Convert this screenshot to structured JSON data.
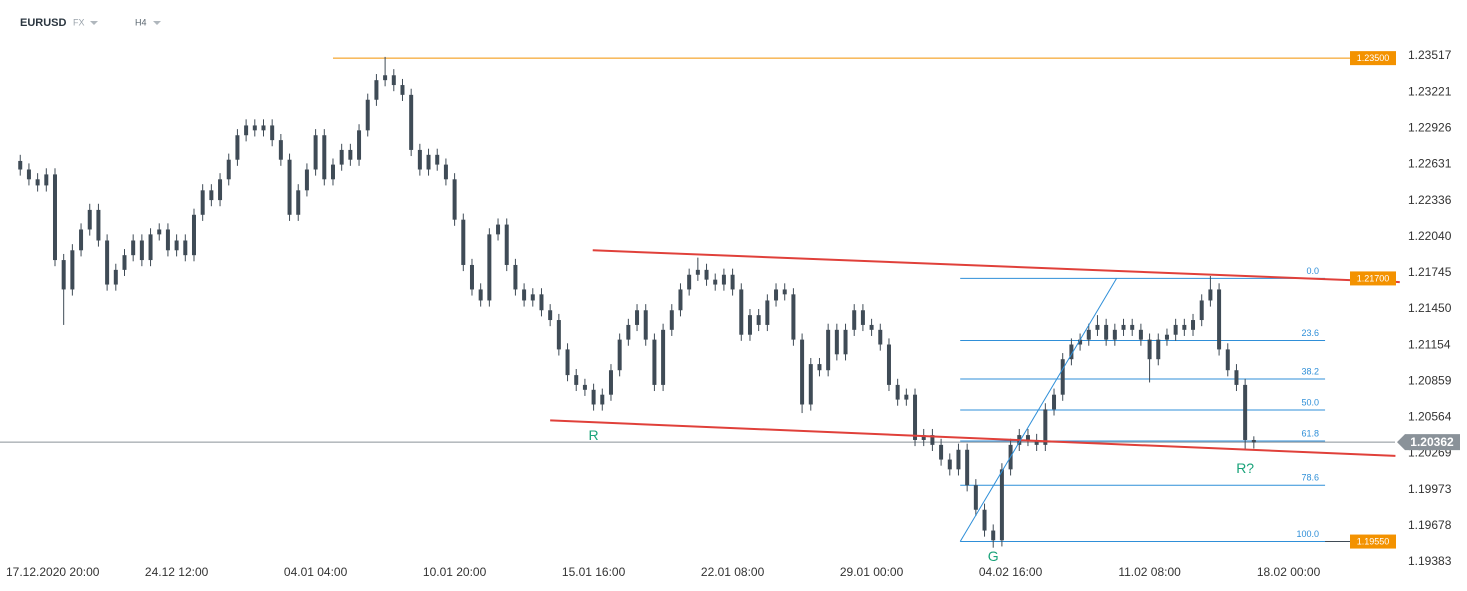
{
  "header": {
    "symbol": "EURUSD",
    "market": "FX",
    "interval": "H4"
  },
  "chart_data": {
    "type": "candlestick",
    "color": "#3f4b56",
    "open": [
      1.2266,
      1.2259,
      1.2251,
      1.2246,
      1.2255,
      1.2185,
      1.2161,
      1.2193,
      1.221,
      1.2226,
      1.2201,
      1.2165,
      1.2177,
      1.2189,
      1.2201,
      1.2185,
      1.2206,
      1.221,
      1.2193,
      1.2201,
      1.2189,
      1.2222,
      1.2242,
      1.2234,
      1.2251,
      1.2267,
      1.2287,
      1.2295,
      1.2291,
      1.2295,
      1.2283,
      1.2267,
      1.2222,
      1.2242,
      1.2259,
      1.2287,
      1.2251,
      1.2263,
      1.2275,
      1.2267,
      1.2291,
      1.2316,
      1.2332,
      1.2336,
      1.2328,
      1.232,
      1.2275,
      1.2259,
      1.2271,
      1.2263,
      1.2251,
      1.2218,
      1.2181,
      1.2161,
      1.2152,
      1.2206,
      1.2214,
      1.2181,
      1.2161,
      1.2152,
      1.2157,
      1.2144,
      1.2136,
      1.2112,
      1.2091,
      1.2083,
      1.2079,
      1.2067,
      1.2075,
      1.2095,
      1.212,
      1.2132,
      1.2144,
      1.212,
      1.2083,
      1.2128,
      1.2144,
      1.2161,
      1.2173,
      1.2177,
      1.2169,
      1.2165,
      1.2173,
      1.2161,
      1.2124,
      1.214,
      1.2132,
      1.2152,
      1.2161,
      1.2157,
      1.212,
      1.2067,
      1.21,
      1.2095,
      1.2128,
      1.2108,
      1.2128,
      1.2144,
      1.2132,
      1.2128,
      1.2116,
      1.2083,
      1.2071,
      1.2075,
      1.2038,
      1.2042,
      1.2034,
      1.2022,
      1.2014,
      1.203,
      1.2001,
      1.1981,
      1.1964,
      1.1956,
      1.2014,
      1.2034,
      1.2042,
      1.2038,
      1.2034,
      1.2063,
      1.2075,
      1.2104,
      1.2116,
      1.212,
      1.2128,
      1.2132,
      1.212,
      1.2128,
      1.2132,
      1.2128,
      1.212,
      1.2104,
      1.212,
      1.2124,
      1.2132,
      1.2128,
      1.2136,
      1.2152,
      1.2161,
      1.2112,
      1.2095,
      1.2083,
      1.2038
    ],
    "high": [
      1.2271,
      1.2264,
      1.2256,
      1.226,
      1.226,
      1.219,
      1.2198,
      1.2215,
      1.2231,
      1.2231,
      1.2206,
      1.2182,
      1.2194,
      1.2206,
      1.2206,
      1.2211,
      1.2215,
      1.2215,
      1.2206,
      1.2206,
      1.2227,
      1.2247,
      1.2247,
      1.2256,
      1.2272,
      1.2292,
      1.23,
      1.23,
      1.23,
      1.23,
      1.2288,
      1.2272,
      1.2247,
      1.2264,
      1.2292,
      1.2292,
      1.2268,
      1.228,
      1.228,
      1.2296,
      1.2321,
      1.2337,
      1.2351,
      1.2341,
      1.2333,
      1.2325,
      1.228,
      1.2276,
      1.2276,
      1.2268,
      1.2256,
      1.2223,
      1.2186,
      1.2166,
      1.2211,
      1.2219,
      1.2219,
      1.2186,
      1.2166,
      1.2162,
      1.2162,
      1.2149,
      1.2141,
      1.2117,
      1.2096,
      1.2088,
      1.2084,
      1.208,
      1.21,
      1.2125,
      1.2137,
      1.2149,
      1.2149,
      1.2125,
      1.2133,
      1.2149,
      1.2166,
      1.2178,
      1.2187,
      1.2182,
      1.2174,
      1.2178,
      1.2178,
      1.2166,
      1.2145,
      1.2145,
      1.2157,
      1.2166,
      1.2166,
      1.2162,
      1.2125,
      1.2105,
      1.2105,
      1.2133,
      1.2133,
      1.2133,
      1.2149,
      1.2149,
      1.2137,
      1.2133,
      1.2121,
      1.2088,
      1.208,
      1.208,
      1.2047,
      1.2047,
      1.2039,
      1.2027,
      1.2035,
      1.2035,
      1.2006,
      1.1986,
      1.1969,
      1.2019,
      1.2039,
      1.2047,
      1.2047,
      1.2043,
      1.2068,
      1.208,
      1.2109,
      1.2121,
      1.2125,
      1.2133,
      1.214,
      1.2137,
      1.2133,
      1.2137,
      1.2137,
      1.2133,
      1.2125,
      1.2125,
      1.2129,
      1.2137,
      1.2137,
      1.2141,
      1.2157,
      1.2172,
      1.2166,
      1.2117,
      1.21,
      1.2088,
      1.2041
    ],
    "low": [
      1.2254,
      1.2246,
      1.2241,
      1.2241,
      1.218,
      1.2132,
      1.2156,
      1.2188,
      1.2205,
      1.2196,
      1.216,
      1.216,
      1.2172,
      1.2184,
      1.218,
      1.218,
      1.2201,
      1.2188,
      1.2188,
      1.2184,
      1.2184,
      1.2217,
      1.2229,
      1.2229,
      1.2246,
      1.2262,
      1.2282,
      1.2286,
      1.2286,
      1.2278,
      1.2262,
      1.2217,
      1.2217,
      1.2237,
      1.2254,
      1.2246,
      1.2246,
      1.2258,
      1.2262,
      1.2262,
      1.2286,
      1.2311,
      1.2327,
      1.2323,
      1.2315,
      1.227,
      1.2254,
      1.2254,
      1.2258,
      1.2246,
      1.2213,
      1.2176,
      1.2156,
      1.2147,
      1.2147,
      1.2201,
      1.2176,
      1.2156,
      1.2147,
      1.2147,
      1.2139,
      1.2131,
      1.2107,
      1.2086,
      1.2078,
      1.2074,
      1.2062,
      1.2062,
      1.207,
      1.209,
      1.2115,
      1.2127,
      1.2115,
      1.2078,
      1.2078,
      1.2123,
      1.2139,
      1.2156,
      1.2168,
      1.2164,
      1.216,
      1.216,
      1.2156,
      1.2119,
      1.2119,
      1.2127,
      1.2127,
      1.2147,
      1.2152,
      1.2115,
      1.206,
      1.2062,
      1.209,
      1.209,
      1.2103,
      1.2103,
      1.2123,
      1.2127,
      1.2123,
      1.2111,
      1.2078,
      1.2066,
      1.2066,
      1.2033,
      1.2033,
      1.2029,
      1.2017,
      1.2009,
      1.2009,
      1.1996,
      1.1976,
      1.1959,
      1.195,
      1.1951,
      1.2009,
      1.2029,
      1.2033,
      1.2029,
      1.2029,
      1.2058,
      1.207,
      1.2099,
      1.2111,
      1.2115,
      1.2123,
      1.2115,
      1.2115,
      1.2123,
      1.2123,
      1.2115,
      1.2085,
      1.2099,
      1.2115,
      1.2119,
      1.2123,
      1.2123,
      1.2131,
      1.2147,
      1.2107,
      1.209,
      1.2078,
      1.203,
      1.2031
    ],
    "close": [
      1.2259,
      1.2251,
      1.2246,
      1.2255,
      1.2185,
      1.2161,
      1.2193,
      1.221,
      1.2226,
      1.2201,
      1.2165,
      1.2177,
      1.2189,
      1.2201,
      1.2185,
      1.2206,
      1.221,
      1.2193,
      1.2201,
      1.2189,
      1.2222,
      1.2242,
      1.2234,
      1.2251,
      1.2267,
      1.2287,
      1.2295,
      1.2291,
      1.2295,
      1.2283,
      1.2267,
      1.2222,
      1.2242,
      1.2259,
      1.2287,
      1.2251,
      1.2263,
      1.2275,
      1.2267,
      1.2291,
      1.2316,
      1.2332,
      1.2336,
      1.2328,
      1.232,
      1.2275,
      1.2259,
      1.2271,
      1.2263,
      1.2251,
      1.2218,
      1.2181,
      1.2161,
      1.2152,
      1.2206,
      1.2214,
      1.2181,
      1.2161,
      1.2152,
      1.2157,
      1.2144,
      1.2136,
      1.2112,
      1.2091,
      1.2083,
      1.2079,
      1.2067,
      1.2075,
      1.2095,
      1.212,
      1.2132,
      1.2144,
      1.212,
      1.2083,
      1.2128,
      1.2144,
      1.2161,
      1.2173,
      1.2177,
      1.2169,
      1.2165,
      1.2173,
      1.2161,
      1.2124,
      1.214,
      1.2132,
      1.2152,
      1.2161,
      1.2157,
      1.212,
      1.2067,
      1.21,
      1.2095,
      1.2128,
      1.2108,
      1.2128,
      1.2144,
      1.2132,
      1.2128,
      1.2116,
      1.2083,
      1.2071,
      1.2075,
      1.2038,
      1.2042,
      1.2034,
      1.2022,
      1.2014,
      1.203,
      1.2001,
      1.1981,
      1.1964,
      1.1956,
      1.2014,
      1.2034,
      1.2042,
      1.2038,
      1.2034,
      1.2063,
      1.2075,
      1.2104,
      1.2116,
      1.212,
      1.2128,
      1.2132,
      1.212,
      1.2128,
      1.2132,
      1.2128,
      1.212,
      1.2104,
      1.212,
      1.2124,
      1.2132,
      1.2128,
      1.2136,
      1.2152,
      1.2161,
      1.2112,
      1.2095,
      1.2083,
      1.2038,
      1.2036
    ],
    "xlim": [
      -2.33,
      158.25
    ],
    "ylim": [
      1.19146,
      1.23975
    ],
    "xticks": [
      {
        "value": 2,
        "label": "17.12.2020  20:00"
      },
      {
        "value": 18,
        "label": "24.12  12:00"
      },
      {
        "value": 34,
        "label": "04.01  04:00"
      },
      {
        "value": 50,
        "label": "10.01  20:00"
      },
      {
        "value": 66,
        "label": "15.01  16:00"
      },
      {
        "value": 82,
        "label": "22.01  08:00"
      },
      {
        "value": 98,
        "label": "29.01  00:00"
      },
      {
        "value": 114,
        "label": "04.02  16:00"
      },
      {
        "value": 130,
        "label": "11.02  08:00"
      },
      {
        "value": 146,
        "label": "18.02  00:00"
      }
    ],
    "yticks": [
      1.23517,
      1.23221,
      1.22926,
      1.22631,
      1.22336,
      {
        "value": 1.2204,
        "label": "1.22040"
      },
      1.21745,
      {
        "value": 1.2145,
        "label": "1.21450"
      },
      1.21154,
      1.20859,
      1.20564,
      1.20269,
      1.19973,
      1.19678,
      1.19383
    ],
    "levels": [
      {
        "value": 1.235,
        "label": "1.23500",
        "color": "#f39200",
        "from": 36
      },
      {
        "value": 1.217,
        "label": "1.21700",
        "color": "#f39200"
      },
      {
        "value": 1.1955,
        "label": "1.19550",
        "color": "#f39200",
        "from": 112,
        "line_color": "#3f4b56"
      }
    ],
    "current_price": {
      "value": 1.20362,
      "label": "1.20362",
      "color": "#8a9299"
    },
    "fibonacci": {
      "high": 1.217,
      "low": 1.1955,
      "x": [
        108.2,
        150.2
      ],
      "color": "#2f8fd8",
      "levels": [
        {
          "value": 0,
          "label": "0.0"
        },
        23.6,
        38.2,
        {
          "value": 50,
          "label": "50.0"
        },
        61.8,
        78.6,
        {
          "value": 100,
          "label": "100.0"
        }
      ]
    },
    "trend_lines": [
      {
        "x": [
          65.9,
          158.8
        ],
        "y": [
          1.2193,
          1.2167
        ],
        "color": "#e0403a"
      },
      {
        "x": [
          61,
          158.3
        ],
        "y": [
          1.2054,
          1.2025
        ],
        "color": "#e0403a"
      },
      {
        "x": [
          108.2,
          126.2
        ],
        "y": [
          1.1955,
          1.217
        ],
        "color": "#2f8fd8"
      }
    ],
    "annotations": [
      {
        "text": "R",
        "x": 66,
        "y": 1.2041
      },
      {
        "text": "G",
        "x": 112,
        "y": 1.1942
      },
      {
        "text": "R?",
        "x": 141,
        "y": 1.2014
      }
    ],
    "annotation_color": "#1aa37a"
  }
}
